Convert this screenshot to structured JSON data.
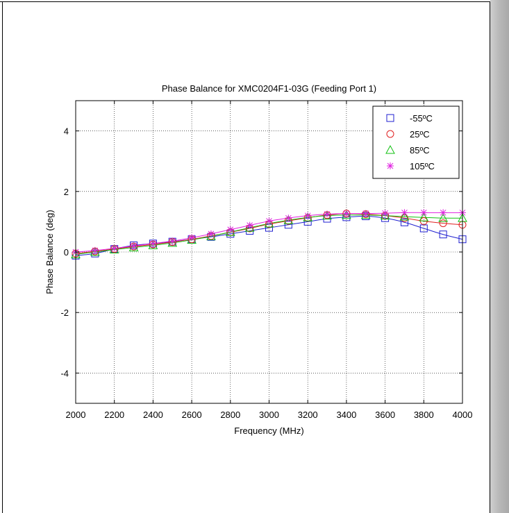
{
  "chart_data": {
    "type": "line",
    "title": "Phase Balance for XMC0204F1-03G (Feeding Port 1)",
    "xlabel": "Frequency (MHz)",
    "ylabel": "Phase Balance (deg)",
    "xlim": [
      2000,
      4000
    ],
    "ylim": [
      -5,
      5
    ],
    "xticks": [
      2000,
      2200,
      2400,
      2600,
      2800,
      3000,
      3200,
      3400,
      3600,
      3800,
      4000
    ],
    "xtick_labels": [
      "2000",
      "2200",
      "2400",
      "2600",
      "2800",
      "3000",
      "3200",
      "3400",
      "3600",
      "3800",
      "4000"
    ],
    "yticks": [
      -4,
      -2,
      0,
      2,
      4
    ],
    "ytick_labels": [
      "-4",
      "-2",
      "0",
      "2",
      "4"
    ],
    "grid": true,
    "legend_position": "top-right",
    "series": [
      {
        "name": "-55ºC",
        "color": "#1f1fd0",
        "marker": "square",
        "x": [
          2000,
          2100,
          2200,
          2300,
          2400,
          2500,
          2600,
          2700,
          2800,
          2900,
          3000,
          3100,
          3200,
          3300,
          3400,
          3500,
          3600,
          3700,
          3800,
          3900,
          4000
        ],
        "values": [
          -0.12,
          -0.05,
          0.1,
          0.22,
          0.28,
          0.34,
          0.42,
          0.5,
          0.6,
          0.7,
          0.8,
          0.9,
          1.0,
          1.1,
          1.15,
          1.18,
          1.12,
          0.98,
          0.78,
          0.58,
          0.42
        ]
      },
      {
        "name": "25ºC",
        "color": "#e02020",
        "marker": "circle",
        "x": [
          2000,
          2100,
          2200,
          2300,
          2400,
          2500,
          2600,
          2700,
          2800,
          2900,
          3000,
          3100,
          3200,
          3300,
          3400,
          3500,
          3600,
          3700,
          3800,
          3900,
          4000
        ],
        "values": [
          -0.05,
          0.02,
          0.1,
          0.18,
          0.25,
          0.33,
          0.42,
          0.53,
          0.65,
          0.78,
          0.92,
          1.03,
          1.13,
          1.22,
          1.27,
          1.25,
          1.2,
          1.12,
          1.02,
          0.95,
          0.9
        ]
      },
      {
        "name": "85ºC",
        "color": "#10c010",
        "marker": "triangle",
        "x": [
          2000,
          2100,
          2200,
          2300,
          2400,
          2500,
          2600,
          2700,
          2800,
          2900,
          3000,
          3100,
          3200,
          3300,
          3400,
          3500,
          3600,
          3700,
          3800,
          3900,
          4000
        ],
        "values": [
          -0.08,
          0.0,
          0.08,
          0.15,
          0.22,
          0.3,
          0.4,
          0.52,
          0.66,
          0.8,
          0.94,
          1.05,
          1.14,
          1.2,
          1.22,
          1.22,
          1.2,
          1.17,
          1.14,
          1.12,
          1.12
        ]
      },
      {
        "name": "105ºC",
        "color": "#e020e0",
        "marker": "star",
        "x": [
          2000,
          2100,
          2200,
          2300,
          2400,
          2500,
          2600,
          2700,
          2800,
          2900,
          3000,
          3100,
          3200,
          3300,
          3400,
          3500,
          3600,
          3700,
          3800,
          3900,
          4000
        ],
        "values": [
          0.0,
          0.05,
          0.12,
          0.2,
          0.28,
          0.36,
          0.47,
          0.6,
          0.74,
          0.88,
          1.02,
          1.12,
          1.2,
          1.25,
          1.27,
          1.27,
          1.28,
          1.3,
          1.3,
          1.3,
          1.3
        ]
      }
    ]
  }
}
